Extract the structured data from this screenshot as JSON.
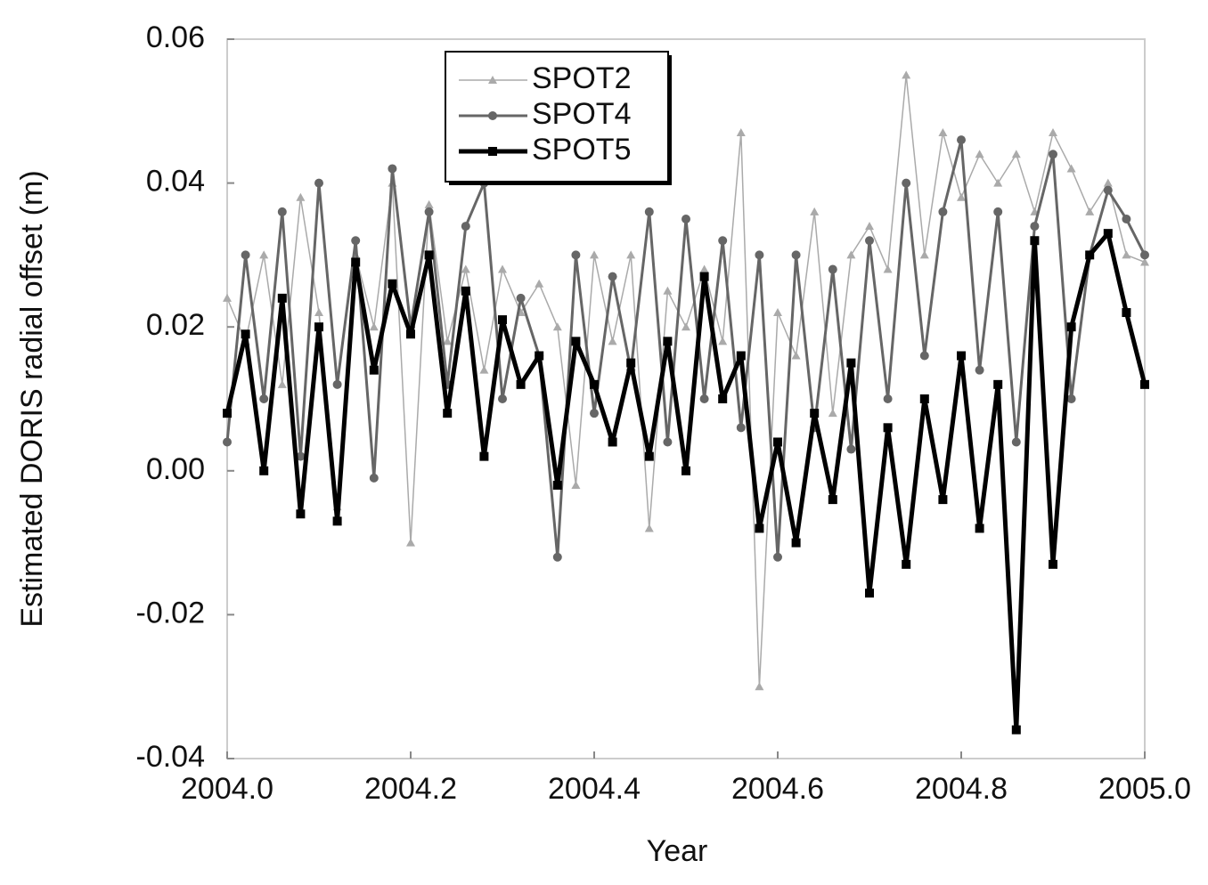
{
  "chart_data": {
    "type": "line",
    "x_label": "Year",
    "y_label": "Estimated DORIS radial offset (m)",
    "x": [
      2004.0,
      2004.02,
      2004.04,
      2004.06,
      2004.08,
      2004.1,
      2004.12,
      2004.14,
      2004.16,
      2004.18,
      2004.2,
      2004.22,
      2004.24,
      2004.26,
      2004.28,
      2004.3,
      2004.32,
      2004.34,
      2004.36,
      2004.38,
      2004.4,
      2004.42,
      2004.44,
      2004.46,
      2004.48,
      2004.5,
      2004.52,
      2004.54,
      2004.56,
      2004.58,
      2004.6,
      2004.62,
      2004.64,
      2004.66,
      2004.68,
      2004.7,
      2004.72,
      2004.74,
      2004.76,
      2004.78,
      2004.8,
      2004.82,
      2004.84,
      2004.86,
      2004.88,
      2004.9,
      2004.92,
      2004.94,
      2004.96,
      2004.98,
      2005.0
    ],
    "series": [
      {
        "name": "SPOT2",
        "color": "#aaaaaa",
        "marker": "triangle",
        "values": [
          0.024,
          0.018,
          0.03,
          0.012,
          0.038,
          0.022,
          -0.005,
          0.03,
          0.02,
          0.04,
          -0.01,
          0.037,
          0.018,
          0.028,
          0.014,
          0.028,
          0.022,
          0.026,
          0.02,
          -0.002,
          0.03,
          0.018,
          0.03,
          -0.008,
          0.025,
          0.02,
          0.028,
          0.018,
          0.047,
          -0.03,
          0.022,
          0.016,
          0.036,
          0.008,
          0.03,
          0.034,
          0.028,
          0.055,
          0.03,
          0.047,
          0.038,
          0.044,
          0.04,
          0.044,
          0.036,
          0.047,
          0.042,
          0.036,
          0.04,
          0.03,
          0.029
        ]
      },
      {
        "name": "SPOT4",
        "color": "#666666",
        "marker": "circle",
        "values": [
          0.004,
          0.03,
          0.01,
          0.036,
          0.002,
          0.04,
          0.012,
          0.032,
          -0.001,
          0.042,
          0.02,
          0.036,
          0.012,
          0.034,
          0.04,
          0.01,
          0.024,
          0.016,
          -0.012,
          0.03,
          0.008,
          0.027,
          0.014,
          0.036,
          0.004,
          0.035,
          0.01,
          0.032,
          0.006,
          0.03,
          -0.012,
          0.03,
          0.006,
          0.028,
          0.003,
          0.032,
          0.01,
          0.04,
          0.016,
          0.036,
          0.046,
          0.014,
          0.036,
          0.004,
          0.034,
          0.044,
          0.01,
          0.03,
          0.039,
          0.035,
          0.03
        ]
      },
      {
        "name": "SPOT5",
        "color": "#000000",
        "marker": "square",
        "values": [
          0.008,
          0.019,
          0.0,
          0.024,
          -0.006,
          0.02,
          -0.007,
          0.029,
          0.014,
          0.026,
          0.019,
          0.03,
          0.008,
          0.025,
          0.002,
          0.021,
          0.012,
          0.016,
          -0.002,
          0.018,
          0.012,
          0.004,
          0.015,
          0.002,
          0.018,
          0.0,
          0.027,
          0.01,
          0.016,
          -0.008,
          0.004,
          -0.01,
          0.008,
          -0.004,
          0.015,
          -0.017,
          0.006,
          -0.013,
          0.01,
          -0.004,
          0.016,
          -0.008,
          0.012,
          -0.036,
          0.032,
          -0.013,
          0.02,
          0.03,
          0.033,
          0.022,
          0.012
        ]
      }
    ],
    "xlim": [
      2004.0,
      2005.0
    ],
    "xticks": [
      {
        "value": 2004.0,
        "label": "2004.0"
      },
      2004.2,
      2004.4,
      2004.6,
      2004.8,
      {
        "value": 2005.0,
        "label": "2005.0"
      }
    ],
    "ylim": [
      -0.04,
      0.06
    ],
    "yticks": [
      -0.04,
      -0.02,
      {
        "value": 0,
        "label": "0.00"
      },
      0.02,
      0.04,
      0.06
    ],
    "grid": false,
    "legend": "upper-left"
  }
}
